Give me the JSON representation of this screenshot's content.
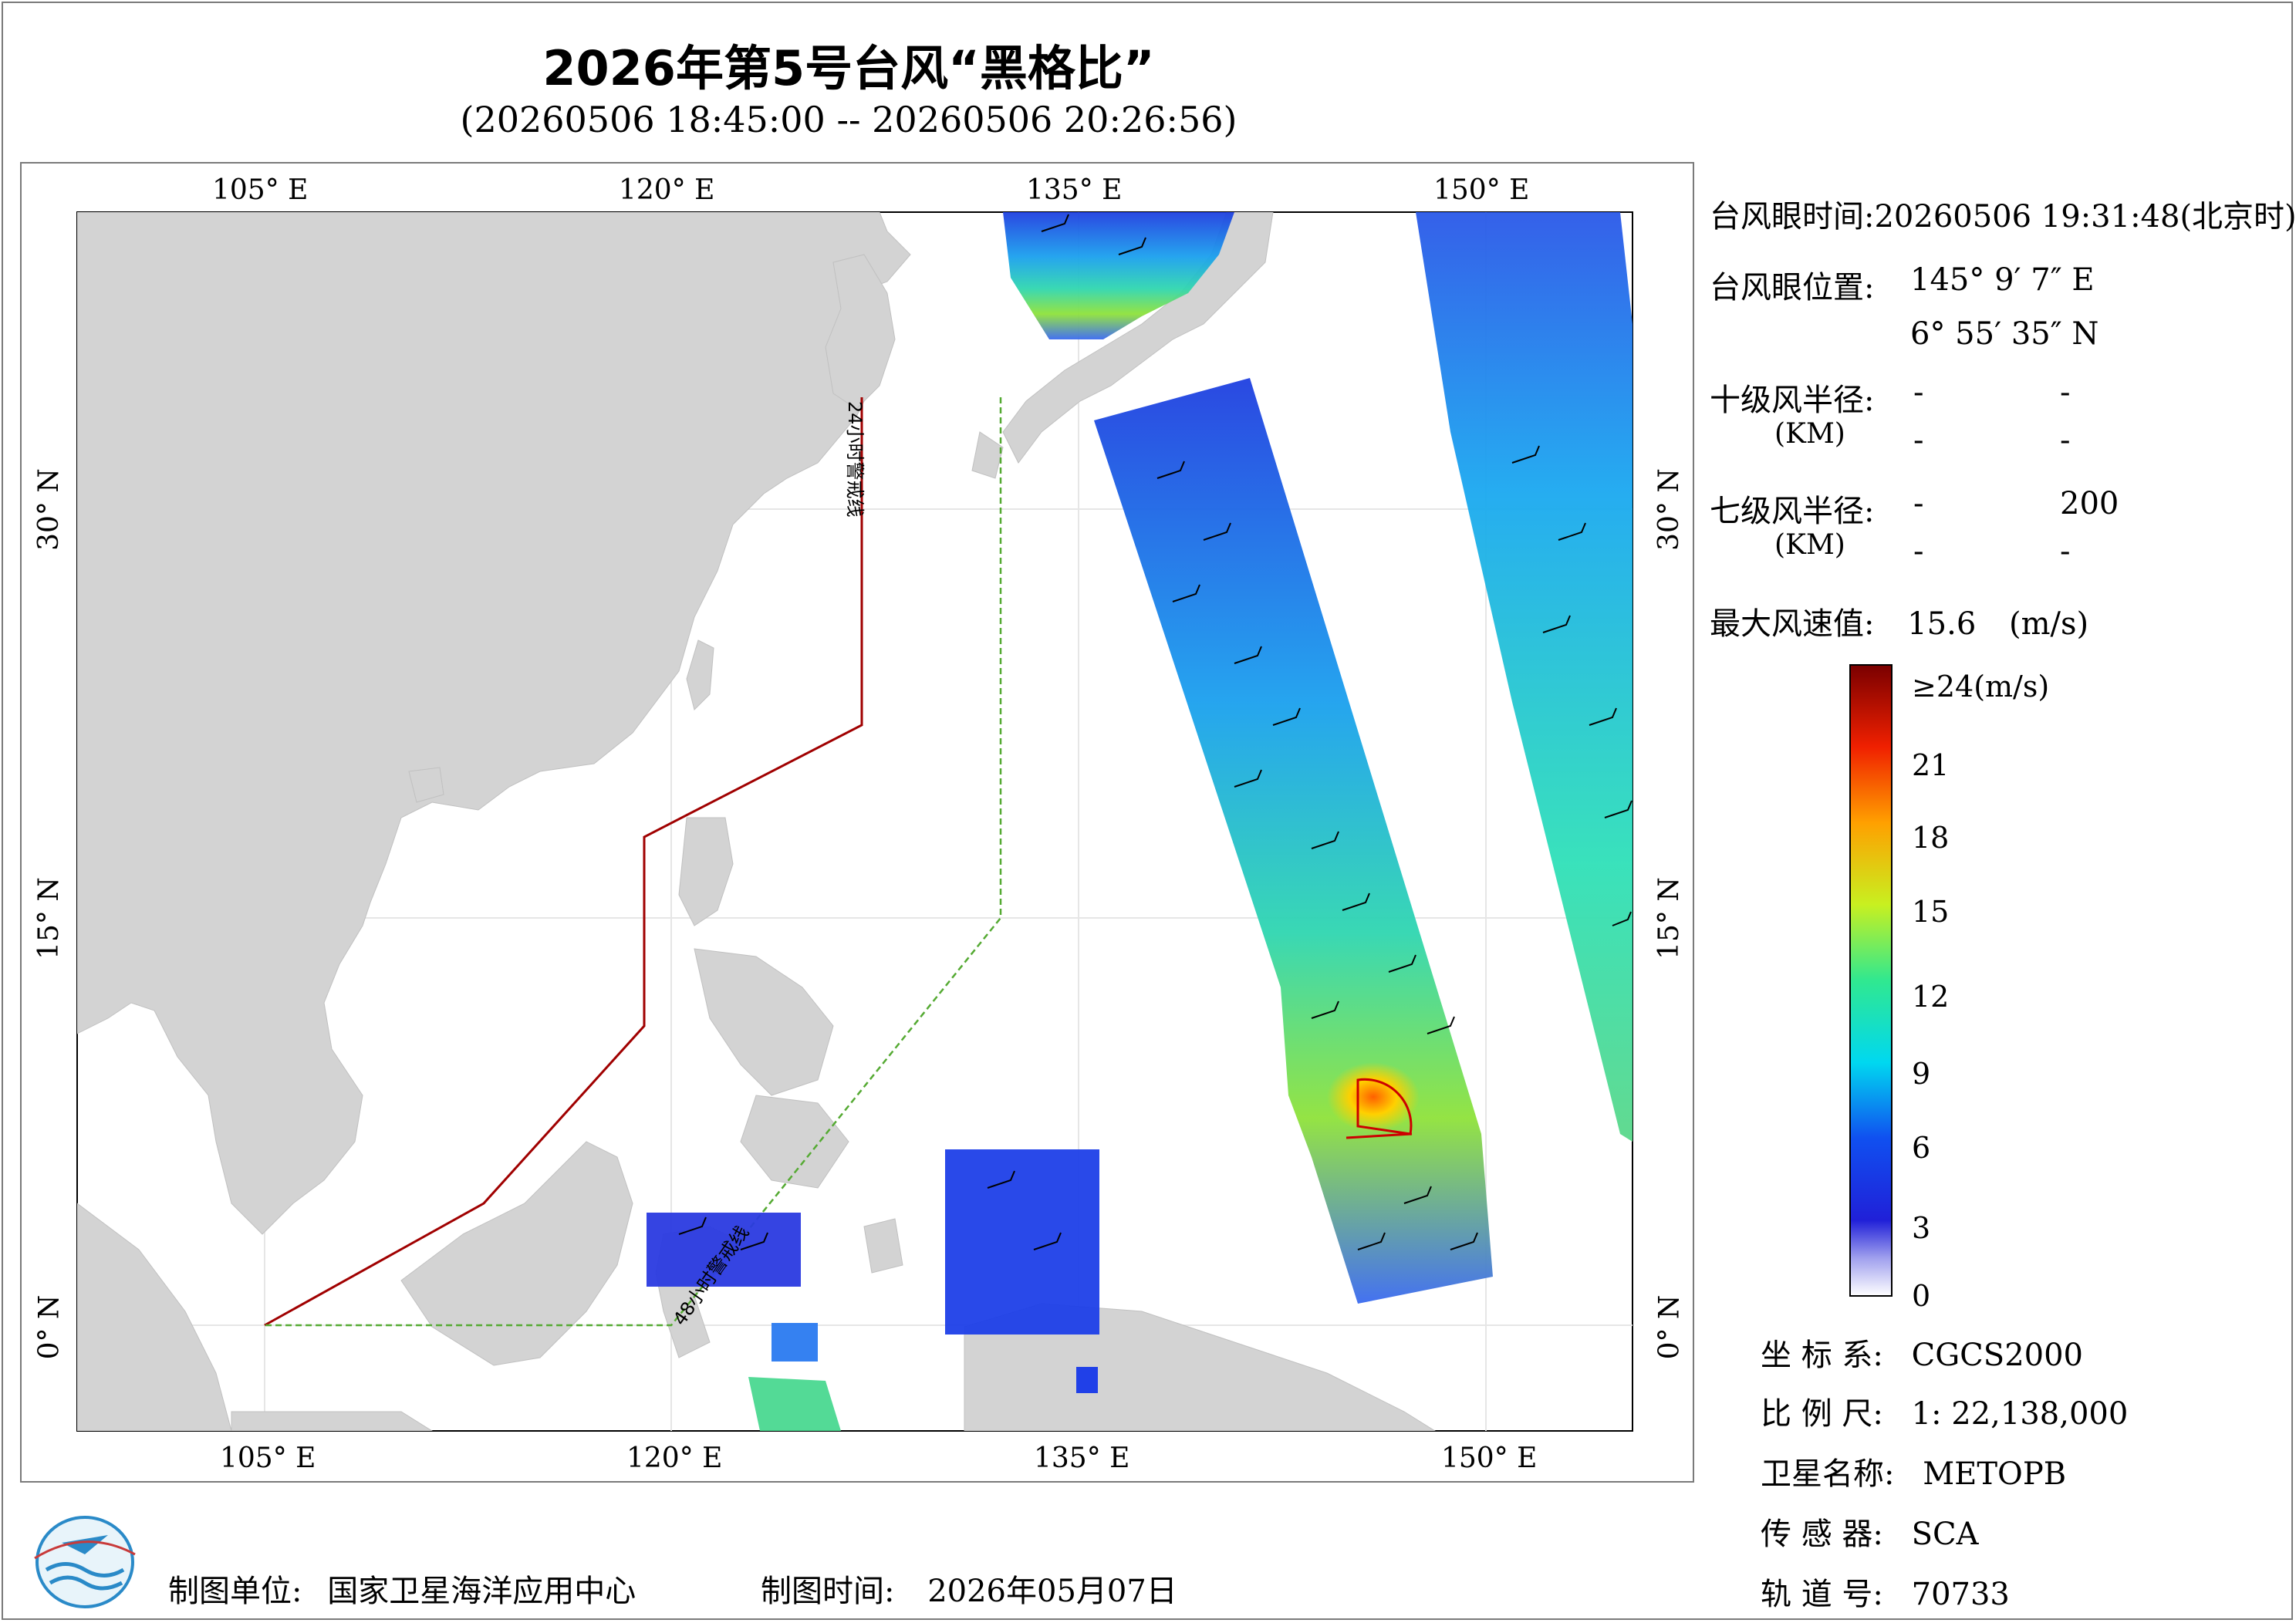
{
  "header": {
    "title": "2026年第5号台风“黑格比”",
    "subtitle": "(20260506 18:45:00 -- 20260506 20:26:56)"
  },
  "map": {
    "lon_ticks": [
      "105° E",
      "120° E",
      "135° E",
      "150° E"
    ],
    "lat_ticks": [
      "30° N",
      "15° N",
      "0° N"
    ],
    "warning_line_24h": "24小时警戒线",
    "warning_line_48h": "48小时警戒线",
    "colors": {
      "land": "#d3d3d3",
      "sea": "#ffffff",
      "line_24h": "#a00000",
      "line_48h": "#55aa33",
      "wind_radius": "#cc0000"
    }
  },
  "info": {
    "eye_time_label": "台风眼时间:",
    "eye_time_value": "20260506 19:31:48(北京时)",
    "eye_pos_label": "台风眼位置:",
    "eye_lon": "145° 9′ 7″ E",
    "eye_lat": "6° 55′ 35″ N",
    "r10_label": "十级风半径:",
    "r10_unit": "(KM)",
    "r10_values": [
      "-",
      "-",
      "-",
      "-"
    ],
    "r7_label": "七级风半径:",
    "r7_unit": "(KM)",
    "r7_values": [
      "-",
      "200",
      "-",
      "-"
    ],
    "max_wind_label": "最大风速值:",
    "max_wind_value": "15.6",
    "max_wind_unit": "(m/s)"
  },
  "colorbar": {
    "labels": [
      "≥24(m/s)",
      "21",
      "18",
      "15",
      "12",
      "9",
      "6",
      "3",
      "0"
    ]
  },
  "meta": {
    "coord_label": "坐 标 系:",
    "coord_value": "CGCS2000",
    "scale_label": "比 例 尺:",
    "scale_value": "1: 22,138,000",
    "satellite_label": "卫星名称:",
    "satellite_value": "METOPB",
    "sensor_label": "传 感 器:",
    "sensor_value": "SCA",
    "orbit_label": "轨 道 号:",
    "orbit_value": "70733"
  },
  "footer": {
    "org_label": "制图单位:",
    "org_value": "国家卫星海洋应用中心",
    "date_label": "制图时间:",
    "date_value": "2026年05月07日"
  }
}
